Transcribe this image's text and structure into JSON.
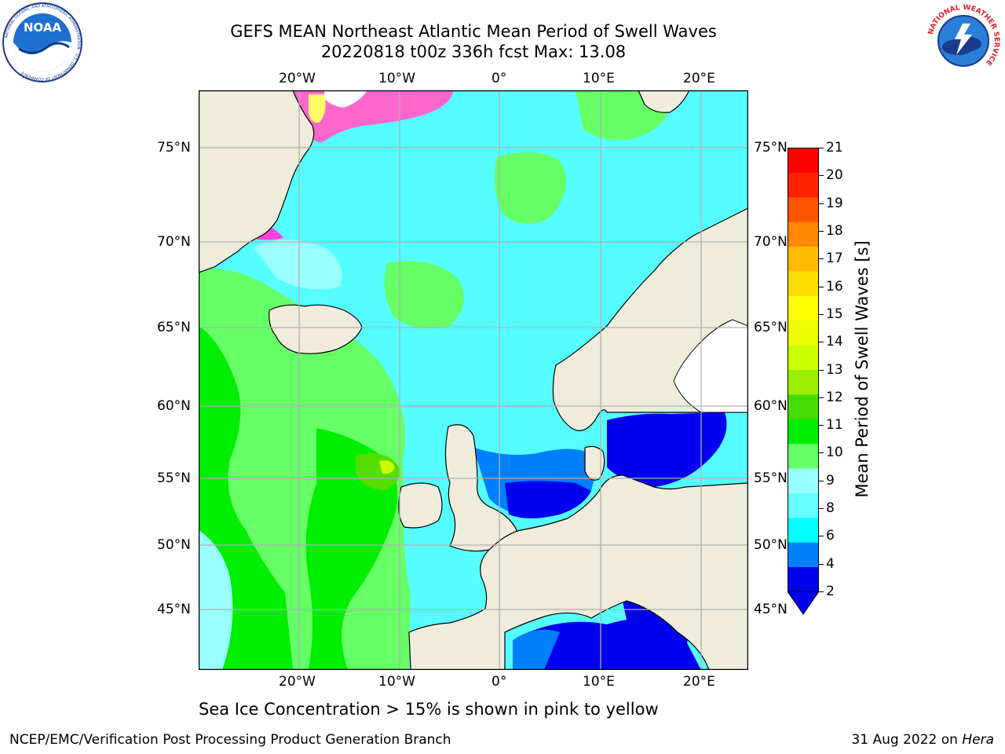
{
  "header": {
    "title_line1": "GEFS MEAN Northeast Atlantic Mean Period of Swell Waves",
    "title_line2": "20220818 t00z 336h fcst   Max: 13.08"
  },
  "logos": {
    "left": "NOAA",
    "left_ring_text": "NATIONAL OCEANIC AND ATMOSPHERIC ADMINISTRATION · U.S. DEPARTMENT OF COMMERCE",
    "right_ring_text": "NATIONAL WEATHER SERVICE"
  },
  "map": {
    "lon_labels": [
      "20°W",
      "10°W",
      "0°",
      "10°E",
      "20°E"
    ],
    "lat_labels": [
      "75°N",
      "70°N",
      "65°N",
      "60°N",
      "55°N",
      "50°N",
      "45°N"
    ],
    "colors": {
      "land": "#efecdc",
      "coast": "#000000",
      "grid": "#b0b0b0",
      "band_2_4": "#0000ee",
      "band_4_6": "#0080ff",
      "band_6_8": "#00ffff",
      "band_8_9": "#99ffff",
      "band_9_10": "#66ff66",
      "band_10_11": "#00ee00",
      "band_11_12": "#55dd00",
      "ice_pink": "#ff66cc"
    }
  },
  "colorbar": {
    "label": "Mean Period of Swell Waves [s]",
    "ticks": [
      "21",
      "20",
      "19",
      "18",
      "17",
      "16",
      "15",
      "14",
      "13",
      "12",
      "11",
      "10",
      "9",
      "8",
      "6",
      "4",
      "2"
    ],
    "colors_bottom_to_top": [
      "#0000ee",
      "#0080ff",
      "#00ffff",
      "#66ffff",
      "#99ffff",
      "#66ff66",
      "#00ee00",
      "#44dd00",
      "#99ee00",
      "#ccff00",
      "#eeff00",
      "#ffff00",
      "#ffdd00",
      "#ffbb00",
      "#ff8800",
      "#ff5500",
      "#ff2200",
      "#ff0000"
    ]
  },
  "footer": {
    "note": "Sea Ice Concentration > 15% is shown in pink to yellow",
    "left": "NCEP/EMC/Verification Post Processing Product Generation Branch",
    "right_prefix": "31 Aug 2022 on ",
    "right_machine": "Hera"
  }
}
